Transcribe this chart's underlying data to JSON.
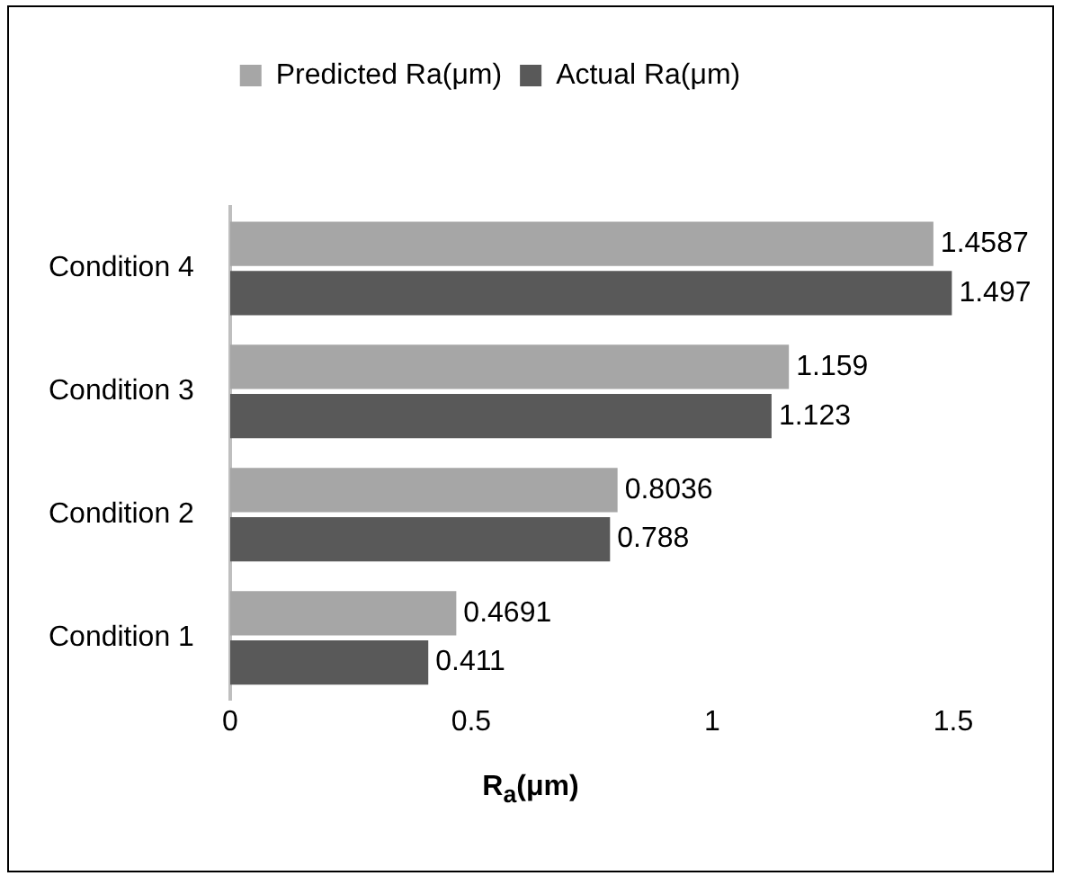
{
  "chart_data": {
    "type": "bar",
    "orientation": "horizontal",
    "xlabel": "R$_{a}$(μm)",
    "categories": [
      "Condition 4",
      "Condition 3",
      "Condition 2",
      "Condition 1"
    ],
    "series": [
      {
        "name": "Predicted Ra(μm)",
        "color": "#a6a6a6",
        "values": [
          1.4587,
          1.159,
          0.8036,
          0.4691
        ]
      },
      {
        "name": "Actual Ra(μm)",
        "color": "#595959",
        "values": [
          1.497,
          1.123,
          0.788,
          0.411
        ]
      }
    ],
    "xlim": [
      0,
      1.5
    ],
    "xticks": [
      0,
      0.5,
      1,
      1.5
    ],
    "grid": false,
    "legend": "top",
    "data_labels": true
  }
}
